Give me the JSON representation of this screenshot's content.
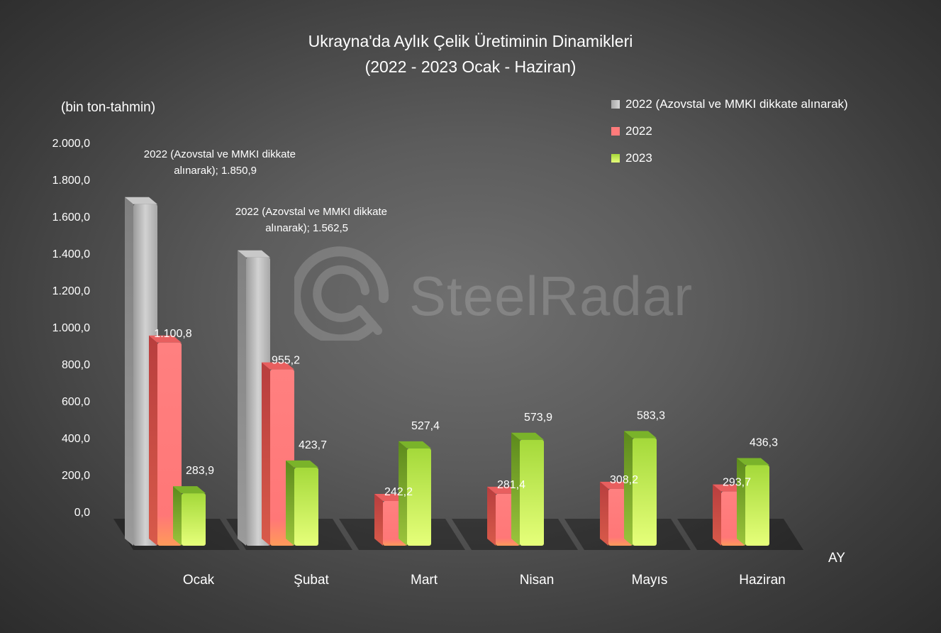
{
  "chart_data": {
    "type": "bar",
    "title": "Ukrayna'da Aylık Çelik Üretiminin Dinamikleri",
    "subtitle": "(2022 - 2023 Ocak - Haziran)",
    "ylabel": "(bin ton-tahmin)",
    "xlabel": "AY",
    "ylim": [
      0,
      2000
    ],
    "yticks": [
      "0,0",
      "200,0",
      "400,0",
      "600,0",
      "800,0",
      "1.000,0",
      "1.200,0",
      "1.400,0",
      "1.600,0",
      "1.800,0",
      "2.000,0"
    ],
    "categories": [
      "Ocak",
      "Şubat",
      "Mart",
      "Nisan",
      "Mayıs",
      "Haziran"
    ],
    "series": [
      {
        "name": "2022 (Azovstal ve MMKI dikkate alınarak)",
        "color": "#bdbdbd",
        "values": [
          1850.9,
          1562.5,
          null,
          null,
          null,
          null
        ],
        "labels": [
          "2022 (Azovstal ve MMKI dikkate alınarak); 1.850,9",
          "2022 (Azovstal ve MMKI dikkate alınarak); 1.562,5",
          "",
          "",
          "",
          ""
        ]
      },
      {
        "name": "2022",
        "color": "#ff7b7b",
        "values": [
          1100.8,
          955.2,
          242.2,
          281.4,
          308.2,
          293.7
        ],
        "labels": [
          "1.100,8",
          "955,2",
          "242,2",
          "281,4",
          "308,2",
          "293,7"
        ]
      },
      {
        "name": "2023",
        "color": "#a6d83a",
        "values": [
          283.9,
          423.7,
          527.4,
          573.9,
          583.3,
          436.3
        ],
        "labels": [
          "283,9",
          "423,7",
          "527,4",
          "573,9",
          "583,3",
          "436,3"
        ]
      }
    ],
    "legend_position": "top-right",
    "grid": false
  },
  "watermark": {
    "text": "SteelRadar"
  }
}
